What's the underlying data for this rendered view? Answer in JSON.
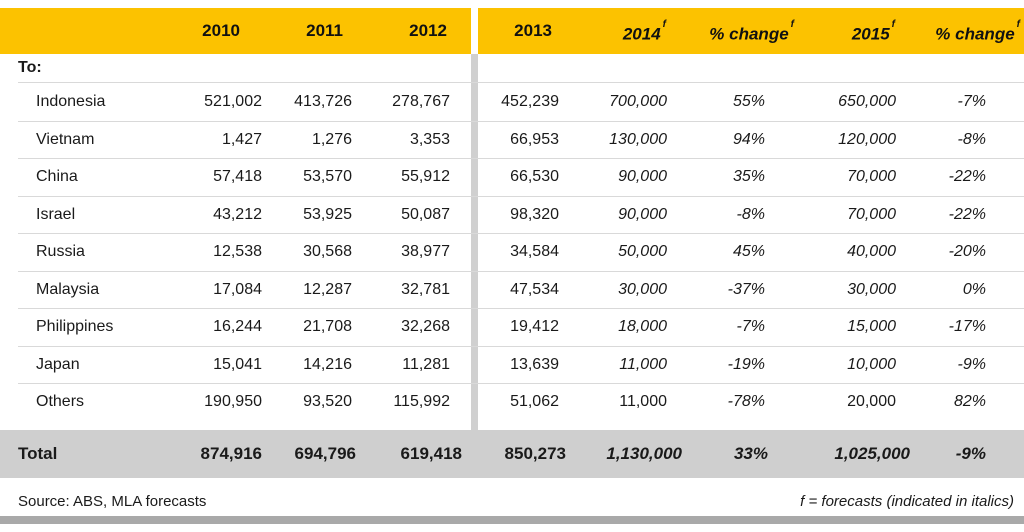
{
  "columns": [
    "2010",
    "2011",
    "2012",
    "2013",
    "2014",
    "% change",
    "2015",
    "% change"
  ],
  "forecast_mark": "f",
  "section_label": "To:",
  "rows": [
    {
      "name": "Indonesia",
      "values": [
        "521,002",
        "413,726",
        "278,767",
        "452,239",
        "700,000",
        "55%",
        "650,000",
        "-7%"
      ]
    },
    {
      "name": "Vietnam",
      "values": [
        "1,427",
        "1,276",
        "3,353",
        "66,953",
        "130,000",
        "94%",
        "120,000",
        "-8%"
      ]
    },
    {
      "name": "China",
      "values": [
        "57,418",
        "53,570",
        "55,912",
        "66,530",
        "90,000",
        "35%",
        "70,000",
        "-22%"
      ]
    },
    {
      "name": "Israel",
      "values": [
        "43,212",
        "53,925",
        "50,087",
        "98,320",
        "90,000",
        "-8%",
        "70,000",
        "-22%"
      ]
    },
    {
      "name": "Russia",
      "values": [
        "12,538",
        "30,568",
        "38,977",
        "34,584",
        "50,000",
        "45%",
        "40,000",
        "-20%"
      ]
    },
    {
      "name": "Malaysia",
      "values": [
        "17,084",
        "12,287",
        "32,781",
        "47,534",
        "30,000",
        "-37%",
        "30,000",
        "0%"
      ]
    },
    {
      "name": "Philippines",
      "values": [
        "16,244",
        "21,708",
        "32,268",
        "19,412",
        "18,000",
        "-7%",
        "15,000",
        "-17%"
      ]
    },
    {
      "name": "Japan",
      "values": [
        "15,041",
        "14,216",
        "11,281",
        "13,639",
        "11,000",
        "-19%",
        "10,000",
        "-9%"
      ]
    },
    {
      "name": "Others",
      "values": [
        "190,950",
        "93,520",
        "115,992",
        "51,062",
        "11,000",
        "-78%",
        "20,000",
        "82%"
      ]
    }
  ],
  "total": {
    "name": "Total",
    "values": [
      "874,916",
      "694,796",
      "619,418",
      "850,273",
      "1,130,000",
      "33%",
      "1,025,000",
      "-9%"
    ]
  },
  "source": "Source: ABS, MLA forecasts",
  "legend": "f = forecasts (indicated in italics)"
}
